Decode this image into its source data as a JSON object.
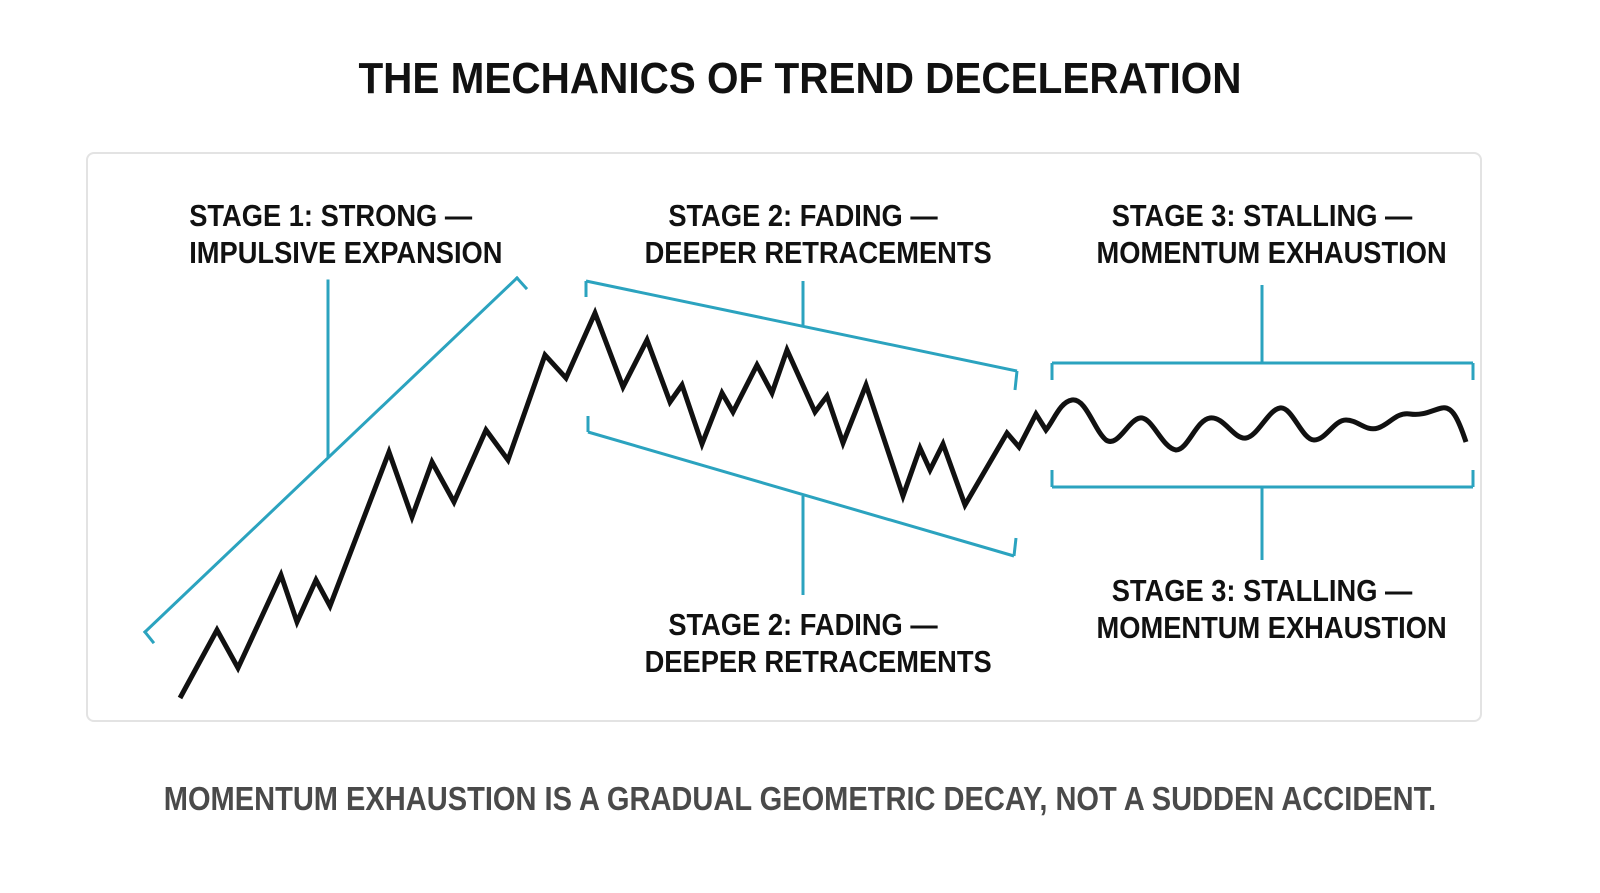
{
  "title": "THE MECHANICS OF TREND DECELERATION",
  "stages": {
    "stage1": {
      "line1": "STAGE 1: STRONG —",
      "line2": "IMPULSIVE EXPANSION"
    },
    "stage2_top": {
      "line1": "STAGE 2: FADING —",
      "line2": "DEEPER RETRACEMENTS"
    },
    "stage2_bottom": {
      "line1": "STAGE 2: FADING —",
      "line2": "DEEPER RETRACEMENTS"
    },
    "stage3_top": {
      "line1": "STAGE 3: STALLING —",
      "line2": "MOMENTUM EXHAUSTION"
    },
    "stage3_bottom": {
      "line1": "STAGE 3: STALLING —",
      "line2": "MOMENTUM EXHAUSTION"
    }
  },
  "caption": "MOMENTUM EXHAUSTION IS A GRADUAL GEOMETRIC DECAY, NOT A SUDDEN ACCIDENT.",
  "colors": {
    "price_line": "#111111",
    "bracket": "#2ba3bf",
    "panel_border": "#e3e3e3",
    "caption": "#4a4a4a"
  }
}
